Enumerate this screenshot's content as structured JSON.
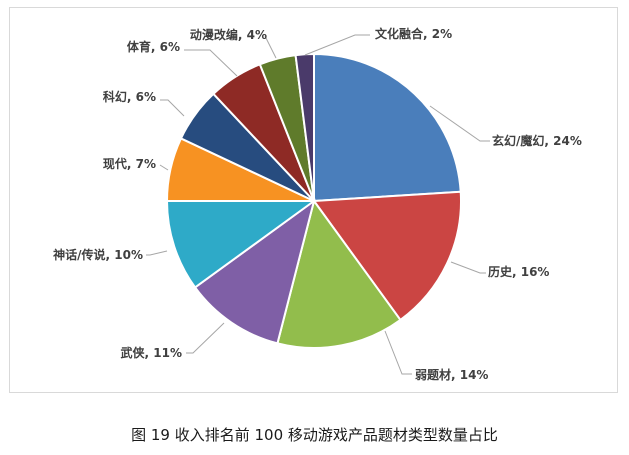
{
  "caption": "图 19  收入排名前 100 移动游戏产品题材类型数量占比",
  "chart_data": {
    "type": "pie",
    "title": "",
    "slices": [
      {
        "label": "玄幻/魔幻",
        "value": 24,
        "display": "玄幻/魔幻, 24%",
        "color": "#4a7ebb"
      },
      {
        "label": "历史",
        "value": 16,
        "display": "历史, 16%",
        "color": "#cb4543"
      },
      {
        "label": "弱题材",
        "value": 14,
        "display": "弱题材, 14%",
        "color": "#92bd4c"
      },
      {
        "label": "武侠",
        "value": 11,
        "display": "武侠, 11%",
        "color": "#7f5fa6"
      },
      {
        "label": "神话/传说",
        "value": 10,
        "display": "神话/传说, 10%",
        "color": "#2eaac8"
      },
      {
        "label": "现代",
        "value": 7,
        "display": "现代, 7%",
        "color": "#f79222"
      },
      {
        "label": "科幻",
        "value": 6,
        "display": "科幻, 6%",
        "color": "#274c7f"
      },
      {
        "label": "体育",
        "value": 6,
        "display": "体育, 6%",
        "color": "#8e2a25"
      },
      {
        "label": "动漫改编",
        "value": 4,
        "display": "动漫改编, 4%",
        "color": "#5f7b2b"
      },
      {
        "label": "文化融合",
        "value": 2,
        "display": "文化融合, 2%",
        "color": "#4a3a6a"
      }
    ],
    "start_angle": "12 o'clock",
    "direction": "clockwise",
    "legend": "none",
    "data_labels": "outside with leader lines"
  }
}
